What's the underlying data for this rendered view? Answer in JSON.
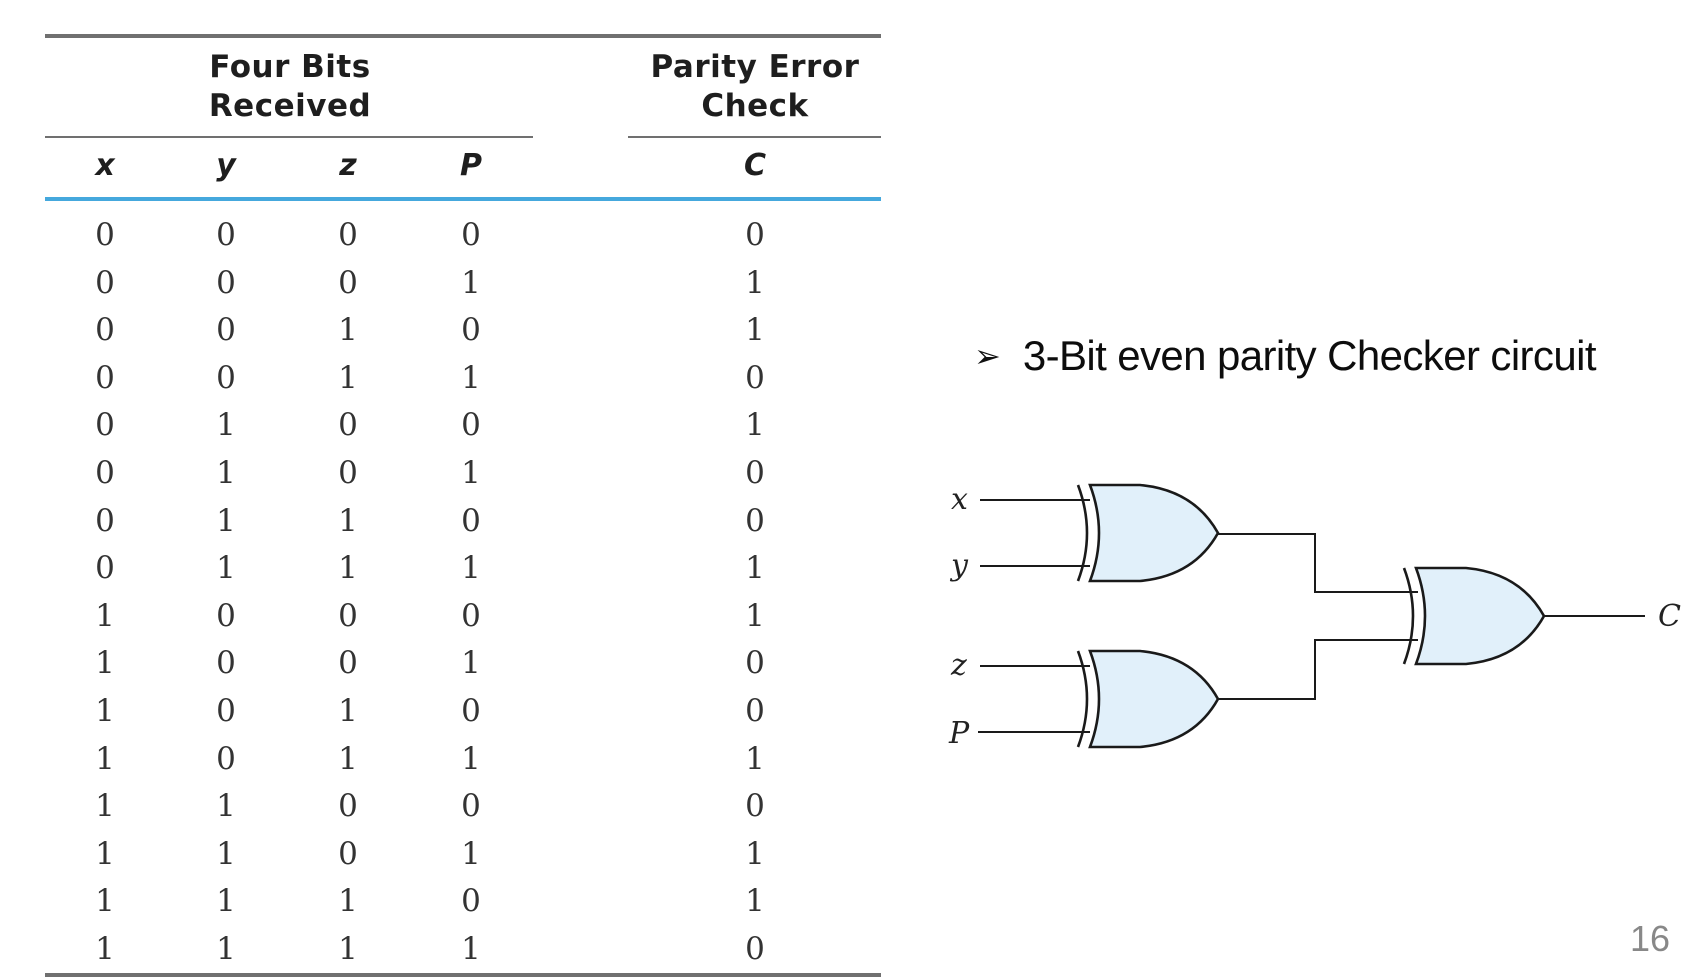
{
  "table": {
    "group_headers": {
      "bits_received": [
        "Four Bits",
        "Received"
      ],
      "parity_error": [
        "Parity Error",
        "Check"
      ]
    },
    "columns": [
      "x",
      "y",
      "z",
      "P",
      "C"
    ],
    "rows": [
      [
        0,
        0,
        0,
        0,
        0
      ],
      [
        0,
        0,
        0,
        1,
        1
      ],
      [
        0,
        0,
        1,
        0,
        1
      ],
      [
        0,
        0,
        1,
        1,
        0
      ],
      [
        0,
        1,
        0,
        0,
        1
      ],
      [
        0,
        1,
        0,
        1,
        0
      ],
      [
        0,
        1,
        1,
        0,
        0
      ],
      [
        0,
        1,
        1,
        1,
        1
      ],
      [
        1,
        0,
        0,
        0,
        1
      ],
      [
        1,
        0,
        0,
        1,
        0
      ],
      [
        1,
        0,
        1,
        0,
        0
      ],
      [
        1,
        0,
        1,
        1,
        1
      ],
      [
        1,
        1,
        0,
        0,
        0
      ],
      [
        1,
        1,
        0,
        1,
        1
      ],
      [
        1,
        1,
        1,
        0,
        1
      ],
      [
        1,
        1,
        1,
        1,
        0
      ]
    ]
  },
  "bullet": {
    "marker": "➢",
    "text": "3-Bit even parity Checker circuit"
  },
  "circuit": {
    "inputs": [
      "x",
      "y",
      "z",
      "P"
    ],
    "output": "C",
    "gate_type": "XOR",
    "gate_fill": "#e1f0fa"
  },
  "colors": {
    "header_divider": "#45a8dd",
    "rule": "#707070"
  },
  "page_number": "16"
}
